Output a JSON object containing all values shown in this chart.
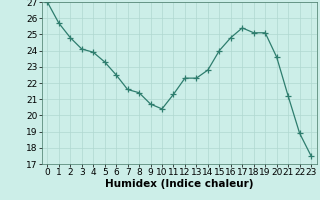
{
  "x": [
    0,
    1,
    2,
    3,
    4,
    5,
    6,
    7,
    8,
    9,
    10,
    11,
    12,
    13,
    14,
    15,
    16,
    17,
    18,
    19,
    20,
    21,
    22,
    23
  ],
  "y": [
    27.0,
    25.7,
    24.8,
    24.1,
    23.9,
    23.3,
    22.5,
    21.6,
    21.4,
    20.7,
    20.4,
    21.3,
    22.3,
    22.3,
    22.8,
    24.0,
    24.8,
    25.4,
    25.1,
    25.1,
    23.6,
    21.2,
    18.9,
    17.5
  ],
  "xlabel": "Humidex (Indice chaleur)",
  "ylim": [
    17,
    27
  ],
  "xlim": [
    -0.5,
    23.5
  ],
  "yticks": [
    17,
    18,
    19,
    20,
    21,
    22,
    23,
    24,
    25,
    26,
    27
  ],
  "xticks": [
    0,
    1,
    2,
    3,
    4,
    5,
    6,
    7,
    8,
    9,
    10,
    11,
    12,
    13,
    14,
    15,
    16,
    17,
    18,
    19,
    20,
    21,
    22,
    23
  ],
  "line_color": "#2e7d6e",
  "marker": "+",
  "marker_size": 4,
  "bg_color": "#cceee8",
  "grid_color": "#b0d8d0",
  "tick_fontsize": 6.5,
  "xlabel_fontsize": 7.5
}
